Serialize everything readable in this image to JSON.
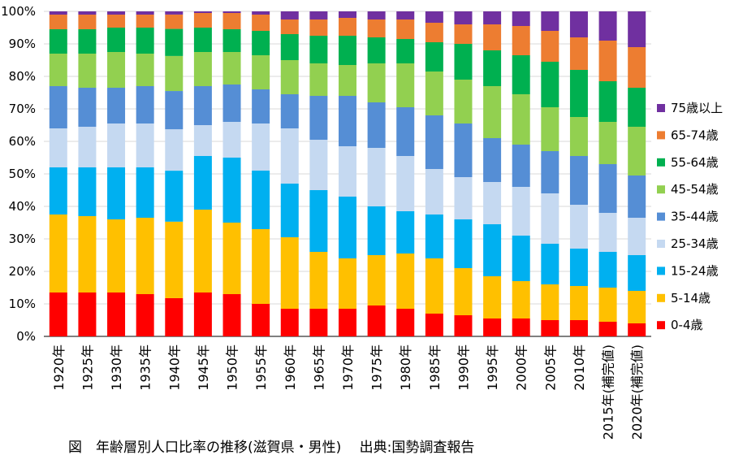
{
  "chart_data": {
    "type": "bar",
    "stacked": true,
    "percent": true,
    "categories": [
      "1920年",
      "1925年",
      "1930年",
      "1935年",
      "1940年",
      "1945年",
      "1950年",
      "1955年",
      "1960年",
      "1965年",
      "1970年",
      "1975年",
      "1980年",
      "1985年",
      "1990年",
      "1995年",
      "2000年",
      "2005年",
      "2010年",
      "2015年(補完値)",
      "2020年(補完値)"
    ],
    "series": [
      {
        "name": "0-4歳",
        "color": "#ff0000",
        "values": [
          13.5,
          13.5,
          13.5,
          13.0,
          12.0,
          13.5,
          13.0,
          10.0,
          8.5,
          8.5,
          8.5,
          9.5,
          8.5,
          7.0,
          6.5,
          5.5,
          5.5,
          5.0,
          5.0,
          4.5,
          4.0
        ]
      },
      {
        "name": "5-14歳",
        "color": "#ffc000",
        "values": [
          24.0,
          23.5,
          22.5,
          23.5,
          24.0,
          25.5,
          22.0,
          23.0,
          22.0,
          17.5,
          15.5,
          15.5,
          17.0,
          17.0,
          14.5,
          13.0,
          11.5,
          11.0,
          10.5,
          10.5,
          10.0
        ]
      },
      {
        "name": "15-24歳",
        "color": "#00b0f0",
        "values": [
          14.5,
          15.0,
          16.0,
          15.5,
          16.0,
          16.5,
          20.0,
          18.0,
          16.5,
          19.0,
          19.0,
          15.0,
          13.0,
          13.5,
          15.0,
          16.0,
          14.0,
          12.5,
          11.5,
          11.0,
          11.0
        ]
      },
      {
        "name": "25-34歳",
        "color": "#c5d9f1",
        "values": [
          12.0,
          12.5,
          13.5,
          13.5,
          13.0,
          9.5,
          11.0,
          14.5,
          17.0,
          15.5,
          15.5,
          18.0,
          17.0,
          14.0,
          13.0,
          13.0,
          15.0,
          15.5,
          13.5,
          12.0,
          11.5
        ]
      },
      {
        "name": "35-44歳",
        "color": "#558ed5",
        "values": [
          13.0,
          12.0,
          11.0,
          11.5,
          12.0,
          12.0,
          11.5,
          10.5,
          10.5,
          13.5,
          15.5,
          14.0,
          15.0,
          16.5,
          16.5,
          13.5,
          13.0,
          13.0,
          15.0,
          15.0,
          13.0
        ]
      },
      {
        "name": "45-54歳",
        "color": "#92d050",
        "values": [
          10.0,
          10.5,
          11.0,
          10.0,
          11.0,
          10.5,
          10.0,
          10.5,
          10.5,
          10.0,
          9.5,
          12.0,
          13.5,
          13.5,
          13.5,
          16.0,
          15.5,
          13.5,
          12.0,
          13.0,
          15.0
        ]
      },
      {
        "name": "55-64歳",
        "color": "#00b050",
        "values": [
          7.5,
          7.5,
          7.5,
          8.0,
          8.5,
          7.5,
          7.0,
          7.5,
          8.0,
          8.5,
          9.0,
          8.0,
          7.5,
          9.0,
          11.0,
          11.0,
          12.0,
          14.0,
          14.5,
          12.5,
          12.0
        ]
      },
      {
        "name": "65-74歳",
        "color": "#ed7d31",
        "values": [
          4.5,
          4.5,
          4.0,
          4.0,
          4.5,
          4.5,
          5.0,
          5.0,
          4.5,
          5.0,
          5.5,
          5.5,
          6.0,
          6.0,
          6.0,
          8.0,
          9.0,
          9.5,
          10.0,
          12.5,
          12.5
        ]
      },
      {
        "name": "75歳以上",
        "color": "#7030a0",
        "values": [
          1.0,
          1.0,
          1.0,
          1.0,
          1.0,
          0.5,
          0.5,
          1.0,
          2.5,
          2.5,
          2.0,
          2.5,
          2.5,
          3.5,
          4.0,
          4.0,
          4.5,
          6.0,
          8.0,
          9.0,
          11.0
        ]
      }
    ],
    "y_ticks": [
      "0%",
      "10%",
      "20%",
      "30%",
      "40%",
      "50%",
      "60%",
      "70%",
      "80%",
      "90%",
      "100%"
    ],
    "ylim": [
      0,
      100
    ],
    "grid": true,
    "legend_position": "right",
    "legend_order": "reversed"
  },
  "caption": "図　年齢層別人口比率の推移(滋賀県・男性)　 出典:国勢調査報告"
}
